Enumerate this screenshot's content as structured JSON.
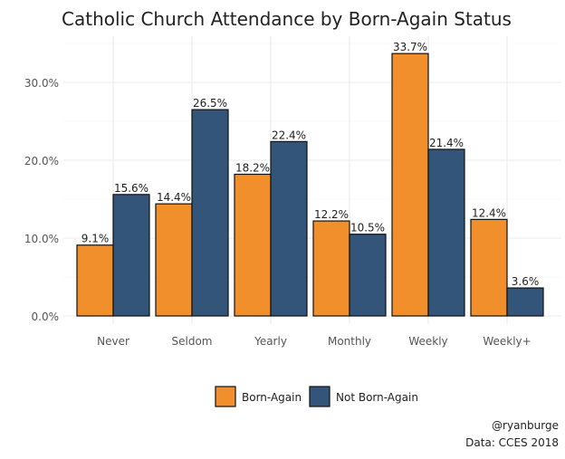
{
  "chart_data": {
    "type": "bar",
    "title": "Catholic Church Attendance by Born-Again Status",
    "xlabel": "",
    "ylabel": "",
    "categories": [
      "Never",
      "Seldom",
      "Yearly",
      "Monthly",
      "Weekly",
      "Weekly+"
    ],
    "series": [
      {
        "name": "Born-Again",
        "color": "#F18F2D",
        "values": [
          9.1,
          14.4,
          18.2,
          12.2,
          33.7,
          12.4
        ]
      },
      {
        "name": "Not Born-Again",
        "color": "#34557A",
        "values": [
          15.6,
          26.5,
          22.4,
          10.5,
          21.4,
          3.6
        ]
      }
    ],
    "ylim": [
      0,
      36
    ],
    "yticks": [
      0,
      10,
      20,
      30
    ],
    "ytick_labels": [
      "0.0%",
      "10.0%",
      "20.0%",
      "30.0%"
    ],
    "grid": true,
    "legend_position": "bottom",
    "caption": [
      "@ryanburge",
      "Data: CCES 2018"
    ]
  }
}
